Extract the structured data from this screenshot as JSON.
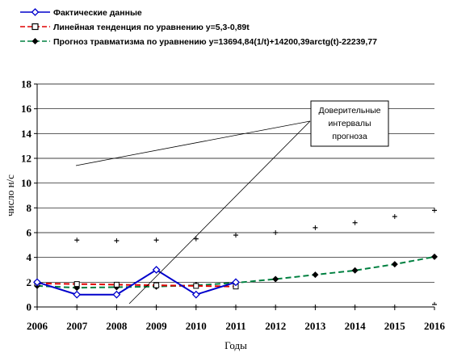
{
  "chart_data": {
    "type": "line",
    "xlabel": "Годы",
    "ylabel": "число н/с",
    "ylim": [
      0,
      18
    ],
    "xlim": [
      2006,
      2016
    ],
    "yticks": [
      "0",
      "2",
      "4",
      "6",
      "8",
      "10",
      "12",
      "14",
      "16",
      "18"
    ],
    "xticks": [
      "2006",
      "2007",
      "2008",
      "2009",
      "2010",
      "2011",
      "2012",
      "2013",
      "2014",
      "2015",
      "2016"
    ],
    "grid": "horizontal",
    "legend_position": "top-left",
    "legend": [
      "Фактические данные",
      "Линейная тенденция по уравнению y=5,3-0,89t",
      "Прогноз травматизма по уравнению y=13694,84(1/t)+14200,39arctg(t)-22239,77"
    ],
    "annotation": {
      "lines": [
        "Доверительные",
        "интервалы",
        "прогноза"
      ]
    },
    "series": [
      {
        "name": "Фактические данные",
        "color": "#0000cc",
        "style": "solid",
        "marker": "diamond-open",
        "x": [
          2006,
          2007,
          2008,
          2009,
          2010,
          2011
        ],
        "y": [
          2,
          1,
          1,
          3,
          1,
          2
        ]
      },
      {
        "name": "Линейная тенденция по уравнению y=5,3-0,89t",
        "color": "#e00000",
        "style": "dashed",
        "marker": "square-open",
        "x": [
          2006,
          2007,
          2008,
          2009,
          2010,
          2011
        ],
        "y": [
          1.9,
          1.85,
          1.8,
          1.75,
          1.7,
          1.65
        ]
      },
      {
        "name": "Прогноз травматизма по уравнению y=13694,84(1/t)+14200,39arctg(t)-22239,77",
        "color": "#008040",
        "style": "dashed",
        "marker": "diamond-filled",
        "x": [
          2006,
          2007,
          2008,
          2009,
          2010,
          2011,
          2012,
          2013,
          2014,
          2015,
          2016
        ],
        "y": [
          1.7,
          1.55,
          1.6,
          1.65,
          1.75,
          1.95,
          2.25,
          2.6,
          2.95,
          3.45,
          4.05
        ]
      }
    ],
    "confidence_interval": {
      "x": [
        2007,
        2008,
        2009,
        2010,
        2011,
        2012,
        2013,
        2014,
        2015,
        2016
      ],
      "upper": [
        5.4,
        5.35,
        5.4,
        5.5,
        5.8,
        6.0,
        6.4,
        6.8,
        7.3,
        7.8
      ],
      "lower": [
        0.0,
        0.0,
        0.0,
        0.0,
        0.0,
        0.0,
        0.0,
        0.0,
        0.0,
        0.2
      ]
    }
  }
}
